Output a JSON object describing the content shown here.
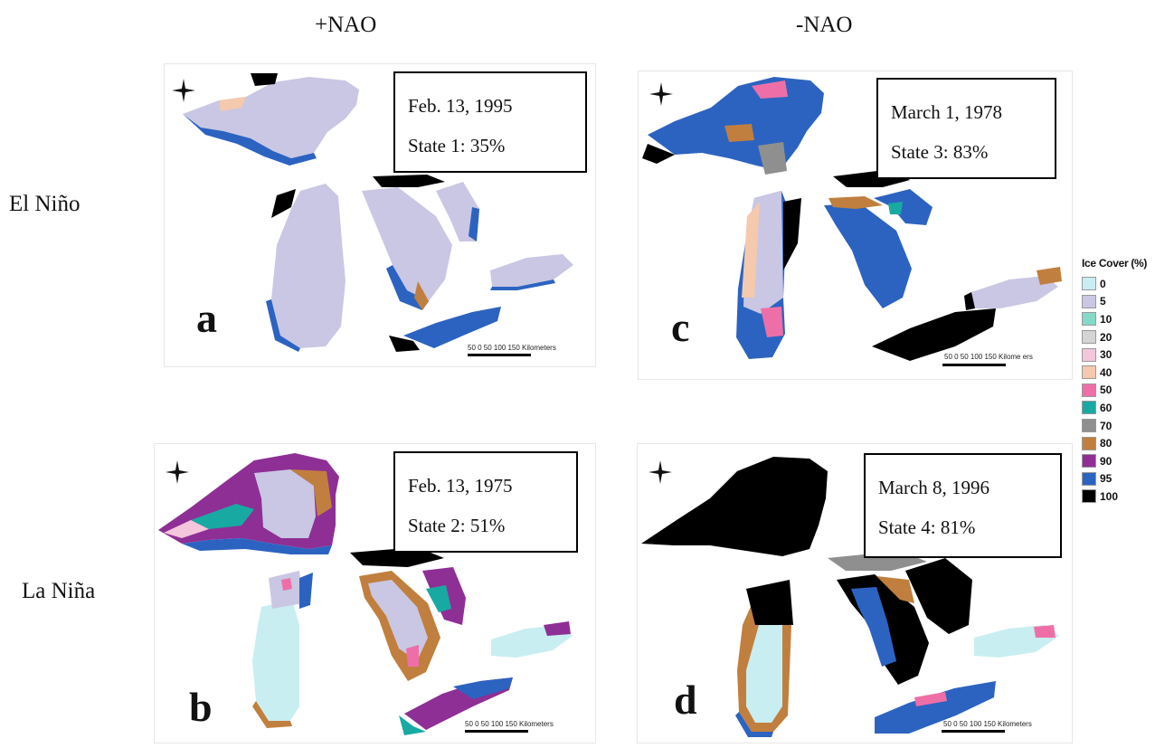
{
  "columns": {
    "left": "+NAO",
    "right": "-NAO"
  },
  "rows": {
    "top": "El  Niño",
    "bottom": "La  Niña"
  },
  "panels": {
    "a": {
      "letter": "a",
      "date": "Feb. 13, 1995",
      "state": "State 1: 35%",
      "scale": "50  0   50  100 150  Kilometers"
    },
    "b": {
      "letter": "b",
      "date": "Feb. 13, 1975",
      "state": "State 2: 51%",
      "scale": "50  0   50  100 150  Kilometers"
    },
    "c": {
      "letter": "c",
      "date": "March 1, 1978",
      "state": "State 3: 83%",
      "scale": "50  0   50  100 150  Kilome ers"
    },
    "d": {
      "letter": "d",
      "date": "March 8, 1996",
      "state": "State 4: 81%",
      "scale": "50  0   50  100 150  Kilometers"
    }
  },
  "compass_label": "N",
  "legend": {
    "title": "Ice Cover (%)",
    "items": [
      {
        "value": "0",
        "color": "#c8eef2"
      },
      {
        "value": "5",
        "color": "#c9c7e3"
      },
      {
        "value": "10",
        "color": "#86d9c9"
      },
      {
        "value": "20",
        "color": "#d4d4d4"
      },
      {
        "value": "30",
        "color": "#f3c6dc"
      },
      {
        "value": "40",
        "color": "#f5c9ad"
      },
      {
        "value": "50",
        "color": "#ee6fa8"
      },
      {
        "value": "60",
        "color": "#19a9a3"
      },
      {
        "value": "70",
        "color": "#8f8f8f"
      },
      {
        "value": "80",
        "color": "#c07f3e"
      },
      {
        "value": "90",
        "color": "#8e2f95"
      },
      {
        "value": "95",
        "color": "#2c63c1"
      },
      {
        "value": "100",
        "color": "#000000"
      }
    ]
  }
}
